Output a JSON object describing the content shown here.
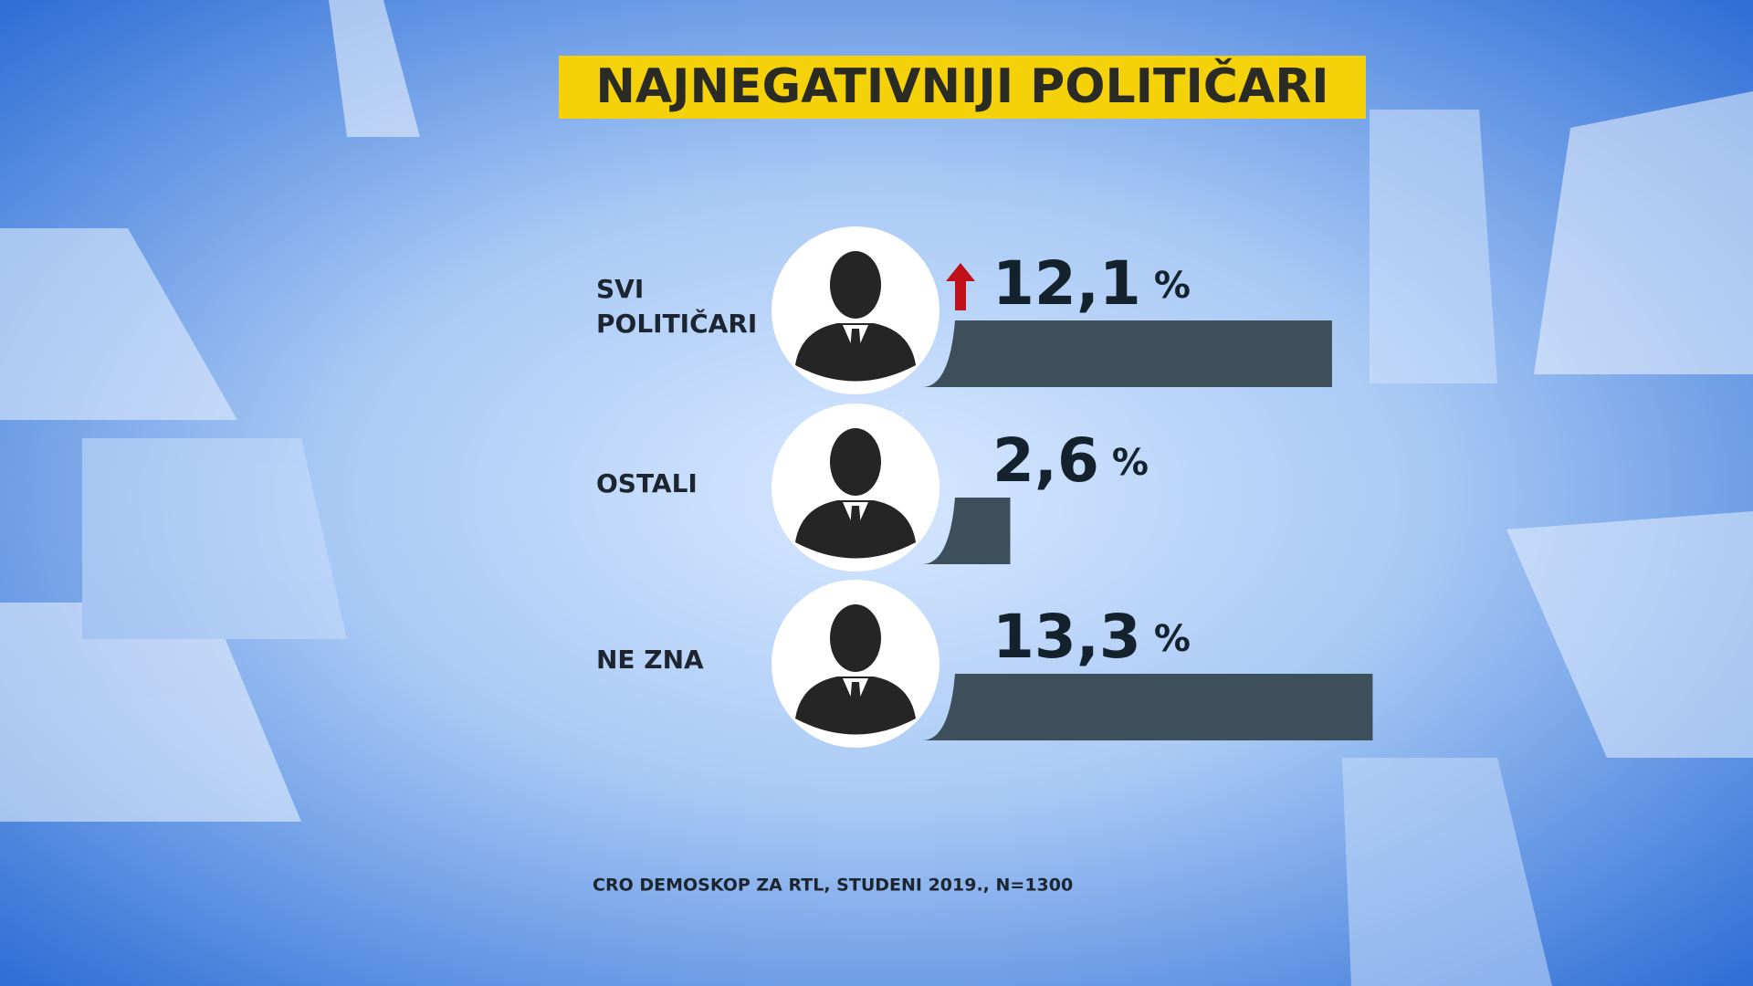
{
  "chart_data": {
    "type": "bar",
    "title": "NAJNEGATIVNIJI POLITIČARI",
    "categories": [
      "SVI POLITIČARI",
      "OSTALI",
      "NE ZNA"
    ],
    "values": [
      12.1,
      2.6,
      13.3
    ],
    "value_labels": [
      "12,1",
      "2,6",
      "13,3"
    ],
    "unit": "%",
    "color": "#3d4f5a",
    "source": "CRO DEMOSKOP ZA RTL, STUDENI 2019., N=1300"
  }
}
